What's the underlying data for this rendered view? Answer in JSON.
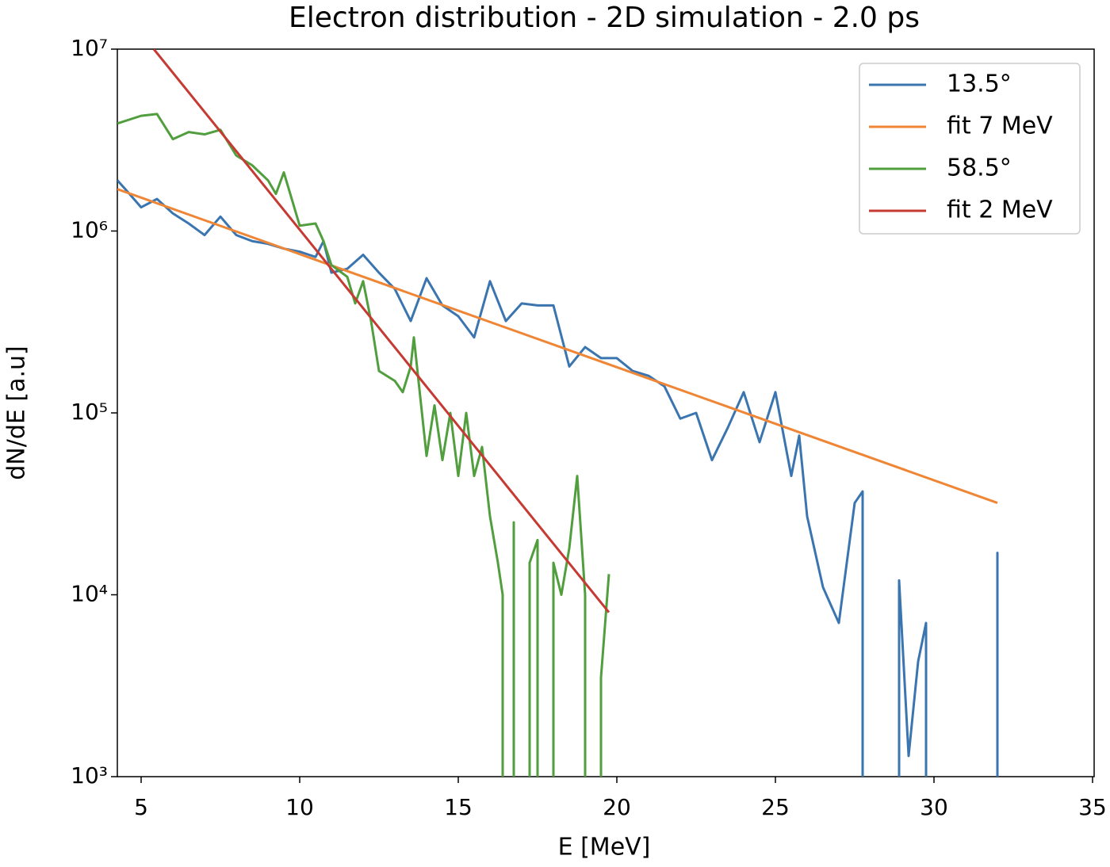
{
  "chart_data": {
    "type": "line",
    "title": "Electron distribution - 2D simulation - 2.0 ps",
    "x_label": "E [MeV]",
    "y_label": "dN/dE [a.u]",
    "xlim": [
      4.25,
      35.05
    ],
    "xticks": [
      5,
      10,
      15,
      20,
      25,
      30,
      35
    ],
    "ylim": [
      1000,
      10000000
    ],
    "log_y": true,
    "yticks": [
      {
        "value": 1000,
        "label": "10³"
      },
      {
        "value": 10000,
        "label": "10⁴"
      },
      {
        "value": 100000,
        "label": "10⁵"
      },
      {
        "value": 1000000,
        "label": "10⁶"
      },
      {
        "value": 10000000,
        "label": "10⁷"
      }
    ],
    "legend": "upper right",
    "series": [
      {
        "name": "13.5°",
        "color": "#3b75af",
        "x": [
          4.25,
          4.5,
          5,
          5.5,
          6,
          6.5,
          7,
          7.5,
          8,
          8.5,
          9,
          9.5,
          10,
          10.5,
          10.75,
          11,
          11.5,
          12,
          12.5,
          13,
          13.5,
          14,
          14.5,
          15,
          15.5,
          16,
          16.5,
          17,
          17.5,
          18,
          18.5,
          19,
          19.5,
          20,
          20.5,
          21,
          21.5,
          22,
          22.5,
          23,
          23.5,
          24,
          24.5,
          25,
          25.5,
          25.75,
          26,
          26.5,
          27,
          27.5,
          27.75,
          28,
          28.5,
          28.9,
          29.2,
          29.5,
          29.75,
          30,
          31,
          31.9,
          32,
          32.1
        ],
        "values": [
          1900000,
          1700000,
          1350000,
          1500000,
          1250000,
          1100000,
          950000,
          1200000,
          950000,
          880000,
          850000,
          800000,
          770000,
          720000,
          880000,
          590000,
          620000,
          740000,
          590000,
          480000,
          320000,
          550000,
          390000,
          340000,
          260000,
          530000,
          320000,
          400000,
          390000,
          390000,
          180000,
          230000,
          200000,
          200000,
          170000,
          160000,
          140000,
          93000,
          100000,
          55000,
          83000,
          130000,
          69000,
          130000,
          45000,
          75000,
          27000,
          11000,
          7000,
          32000,
          37000,
          null,
          null,
          12000,
          1300,
          4300,
          7000,
          null,
          null,
          null,
          17000,
          null
        ]
      },
      {
        "name": "fit 7 MeV",
        "color": "#ef8636",
        "x": [
          4.25,
          32
        ],
        "values": [
          1700000,
          32000
        ]
      },
      {
        "name": "58.5°",
        "color": "#519e3e",
        "x": [
          4.25,
          5,
          5.5,
          6,
          6.5,
          7,
          7.5,
          8,
          8.5,
          9,
          9.25,
          9.5,
          10,
          10.5,
          10.75,
          11,
          11.5,
          11.75,
          12,
          12.25,
          12.5,
          13,
          13.25,
          13.5,
          13.6,
          14,
          14.25,
          14.5,
          14.75,
          15,
          15.25,
          15.5,
          15.75,
          16,
          16.25,
          16.4,
          16.5,
          16.75,
          17,
          17.25,
          17.5,
          17.75,
          18,
          18.25,
          18.5,
          18.75,
          19,
          19.25,
          19.5,
          19.75
        ],
        "values": [
          3900000,
          4300000,
          4400000,
          3200000,
          3500000,
          3400000,
          3600000,
          2600000,
          2300000,
          1900000,
          1600000,
          2100000,
          1070000,
          1100000,
          880000,
          650000,
          560000,
          400000,
          530000,
          320000,
          170000,
          150000,
          130000,
          180000,
          260000,
          58000,
          110000,
          55000,
          100000,
          45000,
          100000,
          45000,
          65000,
          27000,
          15000,
          10000,
          null,
          25000,
          null,
          15000,
          20000,
          null,
          15000,
          10000,
          18000,
          45000,
          10000,
          null,
          3500,
          13000
        ]
      },
      {
        "name": "fit 2 MeV",
        "color": "#c53a32",
        "x": [
          5.4,
          19.75
        ],
        "values": [
          10000000,
          8000
        ]
      }
    ]
  }
}
